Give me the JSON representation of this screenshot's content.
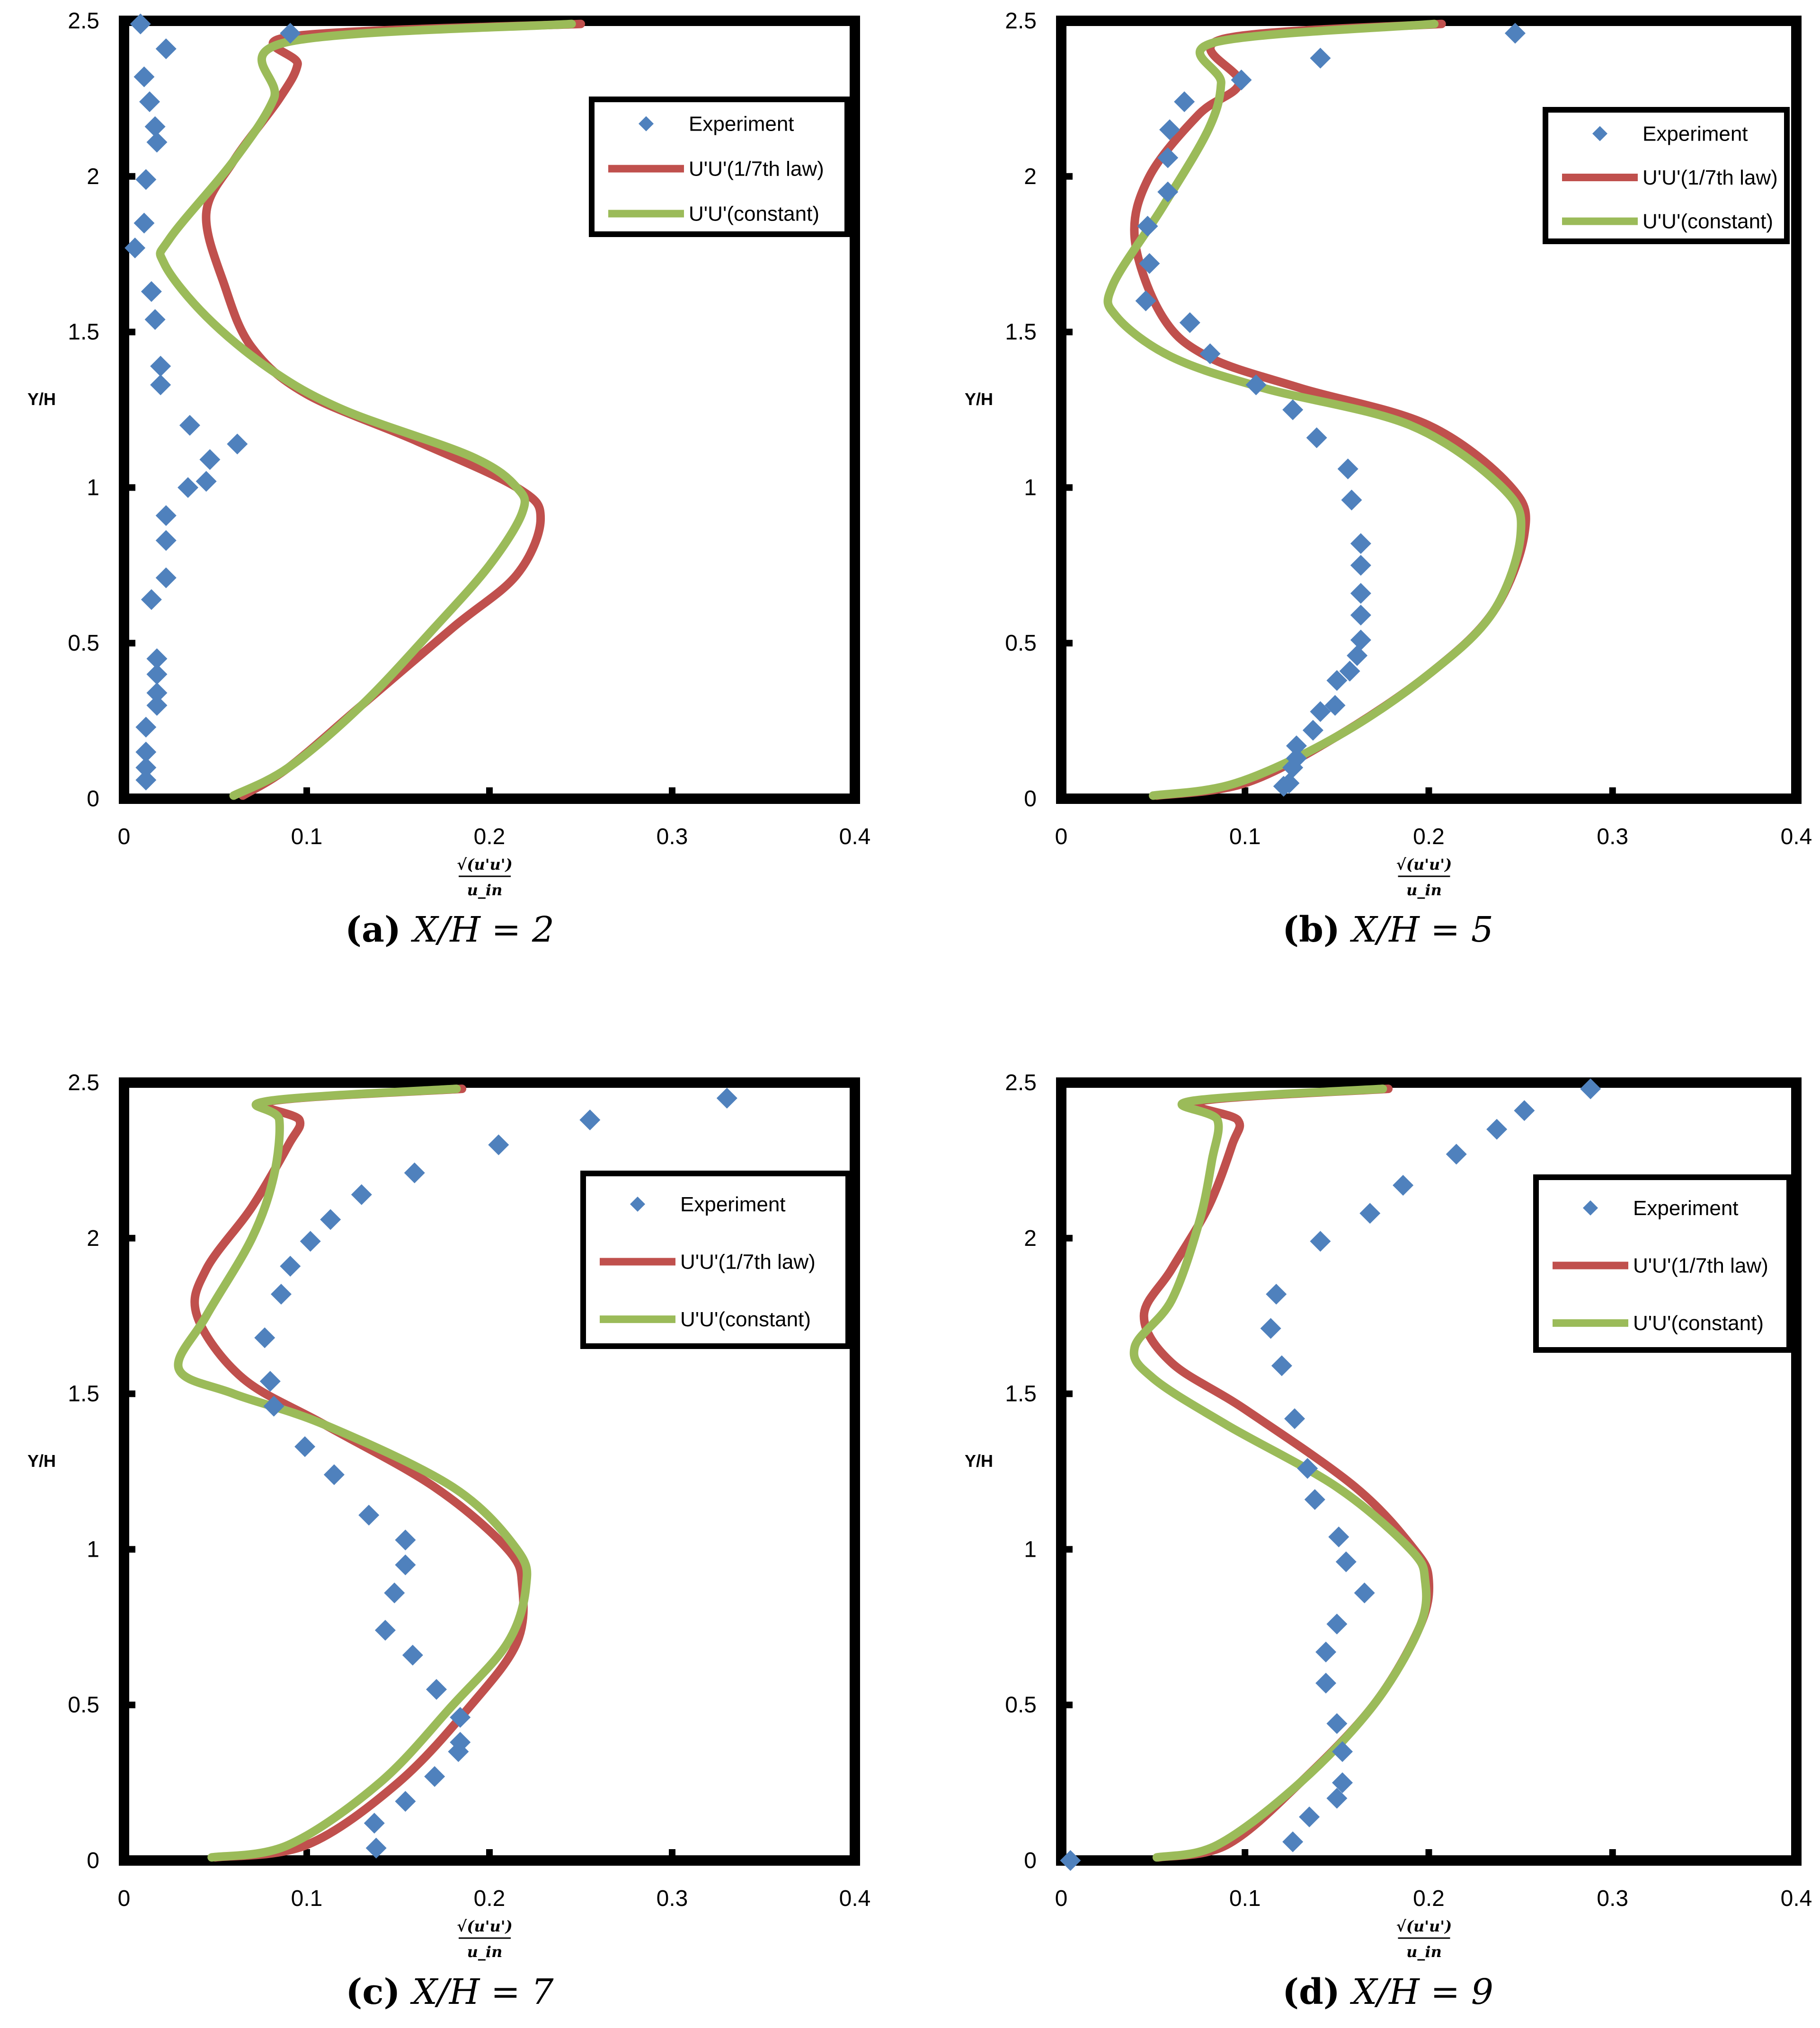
{
  "legend": {
    "experiment": "Experiment",
    "law": "U'U'(1/7th law)",
    "constant": "U'U'(constant)"
  },
  "colors": {
    "experiment": "#4F81BD",
    "law": "#C0504D",
    "constant": "#9BBB59"
  },
  "axes": {
    "ylabel": "Y/H",
    "xlabel_numerator": "√(u'u')",
    "xlabel_denominator": "u_in",
    "xlim": [
      0,
      0.4
    ],
    "ylim": [
      0,
      2.5
    ],
    "xticks": [
      "0",
      "0.1",
      "0.2",
      "0.3",
      "0.4"
    ],
    "yticks": [
      "0",
      "0.5",
      "1",
      "1.5",
      "2",
      "2.5"
    ]
  },
  "chart_data": [
    {
      "type": "scatter",
      "caption_letter": "(a)",
      "caption_eq": "X/H = 2",
      "legend_position": "top-right",
      "xlim": [
        0,
        0.4
      ],
      "ylim": [
        0,
        2.5
      ],
      "series": [
        {
          "name": "Experiment",
          "kind": "markers",
          "x": [
            0.009,
            0.023,
            0.011,
            0.014,
            0.017,
            0.018,
            0.012,
            0.011,
            0.006,
            0.015,
            0.017,
            0.02,
            0.02,
            0.036,
            0.062,
            0.047,
            0.045,
            0.035,
            0.023,
            0.023,
            0.023,
            0.015,
            0.018,
            0.018,
            0.018,
            0.018,
            0.012,
            0.012,
            0.012,
            0.012
          ],
          "y": [
            2.49,
            2.41,
            2.32,
            2.24,
            2.16,
            2.11,
            1.99,
            1.85,
            1.77,
            1.63,
            1.54,
            1.39,
            1.33,
            1.2,
            1.14,
            1.09,
            1.02,
            1.0,
            0.91,
            0.83,
            0.71,
            0.64,
            0.45,
            0.4,
            0.34,
            0.3,
            0.23,
            0.15,
            0.1,
            0.06
          ],
          "extra_x": [
            0.091
          ],
          "extra_y": [
            2.46
          ]
        },
        {
          "name": "U'U'(1/7th law)",
          "kind": "line",
          "x": [
            0.065,
            0.09,
            0.13,
            0.18,
            0.215,
            0.228,
            0.215,
            0.16,
            0.1,
            0.07,
            0.055,
            0.045,
            0.06,
            0.085,
            0.095,
            0.092,
            0.25
          ],
          "y": [
            0.01,
            0.1,
            0.3,
            0.55,
            0.72,
            0.9,
            1.0,
            1.15,
            1.3,
            1.45,
            1.65,
            1.88,
            2.05,
            2.25,
            2.36,
            2.45,
            2.49
          ]
        },
        {
          "name": "U'U'(constant)",
          "kind": "line",
          "x": [
            0.06,
            0.09,
            0.13,
            0.17,
            0.2,
            0.218,
            0.215,
            0.19,
            0.12,
            0.08,
            0.045,
            0.022,
            0.025,
            0.06,
            0.082,
            0.088,
            0.245
          ],
          "y": [
            0.01,
            0.1,
            0.3,
            0.55,
            0.75,
            0.92,
            1.0,
            1.1,
            1.25,
            1.38,
            1.55,
            1.72,
            1.8,
            2.05,
            2.25,
            2.43,
            2.49
          ]
        }
      ]
    },
    {
      "type": "scatter",
      "caption_letter": "(b)",
      "caption_eq": "X/H = 5",
      "legend_position": "top-right",
      "xlim": [
        0,
        0.4
      ],
      "ylim": [
        0,
        2.5
      ],
      "series": [
        {
          "name": "Experiment",
          "kind": "markers",
          "x": [
            0.247,
            0.141,
            0.098,
            0.067,
            0.059,
            0.058,
            0.058,
            0.047,
            0.048,
            0.046,
            0.07,
            0.081,
            0.106,
            0.126,
            0.139,
            0.156,
            0.158,
            0.163,
            0.163,
            0.163,
            0.163,
            0.163,
            0.161,
            0.157,
            0.15,
            0.149,
            0.141,
            0.137,
            0.128,
            0.128,
            0.126,
            0.124,
            0.121
          ],
          "y": [
            2.46,
            2.38,
            2.31,
            2.24,
            2.15,
            2.06,
            1.95,
            1.84,
            1.72,
            1.6,
            1.53,
            1.43,
            1.33,
            1.25,
            1.16,
            1.06,
            0.96,
            0.82,
            0.75,
            0.66,
            0.59,
            0.51,
            0.46,
            0.41,
            0.38,
            0.3,
            0.28,
            0.22,
            0.17,
            0.13,
            0.1,
            0.05,
            0.04
          ]
        },
        {
          "name": "U'U'(1/7th law)",
          "kind": "line",
          "x": [
            0.052,
            0.1,
            0.15,
            0.2,
            0.235,
            0.252,
            0.245,
            0.2,
            0.13,
            0.08,
            0.055,
            0.04,
            0.048,
            0.075,
            0.097,
            0.087,
            0.207
          ],
          "y": [
            0.01,
            0.05,
            0.2,
            0.4,
            0.6,
            0.85,
            1.0,
            1.2,
            1.32,
            1.42,
            1.55,
            1.8,
            2.0,
            2.2,
            2.3,
            2.44,
            2.49
          ]
        },
        {
          "name": "U'U'(constant)",
          "kind": "line",
          "x": [
            0.05,
            0.095,
            0.15,
            0.2,
            0.235,
            0.25,
            0.24,
            0.19,
            0.11,
            0.06,
            0.03,
            0.028,
            0.055,
            0.08,
            0.087,
            0.083,
            0.203
          ],
          "y": [
            0.01,
            0.05,
            0.2,
            0.4,
            0.6,
            0.85,
            1.0,
            1.2,
            1.32,
            1.42,
            1.55,
            1.65,
            1.9,
            2.15,
            2.3,
            2.43,
            2.49
          ]
        }
      ]
    },
    {
      "type": "scatter",
      "caption_letter": "(c)",
      "caption_eq": "X/H = 7",
      "legend_position": "top-right",
      "xlim": [
        0,
        0.4
      ],
      "ylim": [
        0,
        2.5
      ],
      "series": [
        {
          "name": "Experiment",
          "kind": "markers",
          "x": [
            0.33,
            0.255,
            0.205,
            0.159,
            0.13,
            0.113,
            0.102,
            0.091,
            0.086,
            0.077,
            0.08,
            0.082,
            0.099,
            0.115,
            0.134,
            0.154,
            0.154,
            0.148,
            0.143,
            0.158,
            0.171,
            0.184,
            0.184,
            0.183,
            0.17,
            0.154,
            0.137,
            0.138
          ],
          "y": [
            2.45,
            2.38,
            2.3,
            2.21,
            2.14,
            2.06,
            1.99,
            1.91,
            1.82,
            1.68,
            1.54,
            1.46,
            1.33,
            1.24,
            1.11,
            1.03,
            0.95,
            0.86,
            0.74,
            0.66,
            0.55,
            0.46,
            0.38,
            0.35,
            0.27,
            0.19,
            0.12,
            0.04
          ]
        },
        {
          "name": "U'U'(1/7th law)",
          "kind": "line",
          "x": [
            0.05,
            0.1,
            0.15,
            0.19,
            0.215,
            0.218,
            0.21,
            0.17,
            0.11,
            0.065,
            0.04,
            0.045,
            0.07,
            0.09,
            0.096,
            0.08,
            0.185
          ],
          "y": [
            0.01,
            0.05,
            0.25,
            0.5,
            0.7,
            0.88,
            1.0,
            1.2,
            1.4,
            1.55,
            1.75,
            1.9,
            2.1,
            2.3,
            2.38,
            2.44,
            2.48
          ]
        },
        {
          "name": "U'U'(constant)",
          "kind": "line",
          "x": [
            0.048,
            0.09,
            0.14,
            0.18,
            0.21,
            0.22,
            0.215,
            0.18,
            0.11,
            0.06,
            0.03,
            0.045,
            0.07,
            0.082,
            0.085,
            0.078,
            0.182
          ],
          "y": [
            0.01,
            0.05,
            0.25,
            0.5,
            0.7,
            0.88,
            1.0,
            1.2,
            1.4,
            1.5,
            1.58,
            1.75,
            2.0,
            2.2,
            2.38,
            2.44,
            2.48
          ]
        }
      ]
    },
    {
      "type": "scatter",
      "caption_letter": "(d)",
      "caption_eq": "X/H = 9",
      "legend_position": "top-right",
      "xlim": [
        0,
        0.4
      ],
      "ylim": [
        0,
        2.5
      ],
      "series": [
        {
          "name": "Experiment",
          "kind": "markers",
          "x": [
            0.288,
            0.252,
            0.237,
            0.215,
            0.186,
            0.168,
            0.141,
            0.117,
            0.114,
            0.12,
            0.127,
            0.134,
            0.138,
            0.151,
            0.155,
            0.165,
            0.15,
            0.144,
            0.144,
            0.15,
            0.153,
            0.153,
            0.15,
            0.135,
            0.126,
            0.005
          ],
          "y": [
            2.48,
            2.41,
            2.35,
            2.27,
            2.17,
            2.08,
            1.99,
            1.82,
            1.71,
            1.59,
            1.42,
            1.26,
            1.16,
            1.04,
            0.96,
            0.86,
            0.76,
            0.67,
            0.57,
            0.44,
            0.35,
            0.25,
            0.2,
            0.14,
            0.06,
            0.0
          ]
        },
        {
          "name": "U'U'(1/7th law)",
          "kind": "line",
          "x": [
            0.053,
            0.09,
            0.13,
            0.17,
            0.195,
            0.2,
            0.192,
            0.16,
            0.1,
            0.06,
            0.045,
            0.06,
            0.08,
            0.093,
            0.096,
            0.075,
            0.178
          ],
          "y": [
            0.01,
            0.05,
            0.25,
            0.5,
            0.75,
            0.9,
            1.0,
            1.2,
            1.45,
            1.6,
            1.75,
            1.9,
            2.1,
            2.3,
            2.38,
            2.44,
            2.48
          ]
        },
        {
          "name": "U'U'(constant)",
          "kind": "line",
          "x": [
            0.052,
            0.085,
            0.13,
            0.17,
            0.195,
            0.198,
            0.19,
            0.15,
            0.09,
            0.05,
            0.04,
            0.06,
            0.075,
            0.082,
            0.085,
            0.07,
            0.175
          ],
          "y": [
            0.01,
            0.05,
            0.25,
            0.5,
            0.75,
            0.9,
            1.0,
            1.2,
            1.4,
            1.55,
            1.65,
            1.8,
            2.05,
            2.25,
            2.38,
            2.44,
            2.48
          ]
        }
      ]
    }
  ]
}
